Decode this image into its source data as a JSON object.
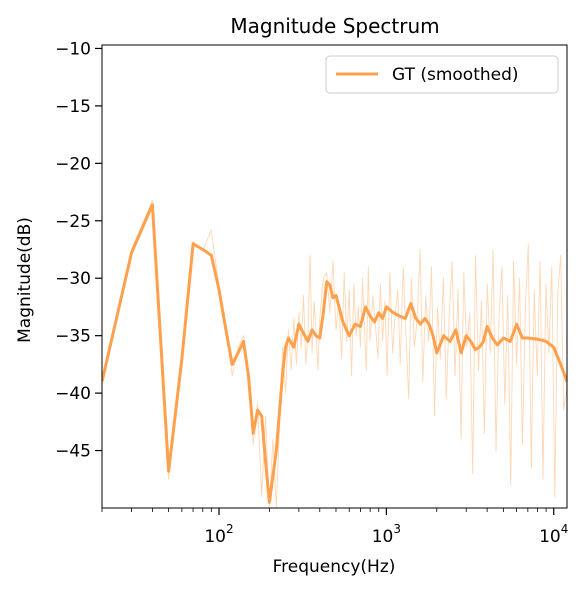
{
  "chart_data": {
    "type": "line",
    "title": "Magnitude Spectrum",
    "xlabel": "Frequency(Hz)",
    "ylabel": "Magnitude(dB)",
    "x_scale": "log",
    "xlim": [
      20,
      12000
    ],
    "ylim": [
      -50,
      -9.7
    ],
    "grid": false,
    "legend_position": "top-right",
    "colors": {
      "smoothed": "#ffa04c",
      "raw": "#ffd3ad"
    },
    "x_ticks": [
      {
        "value": 100,
        "base": "10",
        "exp": "2"
      },
      {
        "value": 1000,
        "base": "10",
        "exp": "3"
      },
      {
        "value": 10000,
        "base": "10",
        "exp": "4"
      }
    ],
    "y_ticks": [
      {
        "value": -10,
        "label": "−10"
      },
      {
        "value": -15,
        "label": "−15"
      },
      {
        "value": -20,
        "label": "−20"
      },
      {
        "value": -25,
        "label": "−25"
      },
      {
        "value": -30,
        "label": "−30"
      },
      {
        "value": -35,
        "label": "−35"
      },
      {
        "value": -40,
        "label": "−40"
      },
      {
        "value": -45,
        "label": "−45"
      }
    ],
    "series": [
      {
        "name": "GT (smoothed)",
        "role": "smoothed",
        "x": [
          20,
          30,
          40,
          50,
          60,
          70,
          80,
          90,
          100,
          110,
          120,
          130,
          140,
          150,
          160,
          170,
          180,
          190,
          200,
          220,
          240,
          250,
          260,
          280,
          300,
          320,
          340,
          360,
          380,
          400,
          420,
          440,
          460,
          480,
          500,
          550,
          600,
          650,
          700,
          750,
          800,
          850,
          900,
          950,
          1000,
          1100,
          1200,
          1300,
          1400,
          1500,
          1600,
          1700,
          1800,
          1900,
          2000,
          2200,
          2400,
          2600,
          2800,
          3000,
          3200,
          3400,
          3600,
          3800,
          4000,
          4300,
          4600,
          5000,
          5500,
          6000,
          6500,
          7000,
          8000,
          9000,
          10000,
          11000,
          12000
        ],
        "y": [
          -39.0,
          -27.8,
          -23.6,
          -46.8,
          -37.0,
          -27.0,
          -27.5,
          -28.0,
          -31.0,
          -34.5,
          -37.5,
          -36.5,
          -35.5,
          -38.5,
          -43.5,
          -41.5,
          -42.0,
          -46.0,
          -49.5,
          -45.0,
          -38.3,
          -36.0,
          -35.2,
          -36.0,
          -34.0,
          -34.8,
          -35.5,
          -34.5,
          -35.0,
          -35.2,
          -33.0,
          -30.3,
          -30.6,
          -31.7,
          -31.5,
          -33.8,
          -35.0,
          -34.0,
          -34.2,
          -32.5,
          -33.3,
          -33.8,
          -33.0,
          -33.5,
          -32.5,
          -33.0,
          -33.3,
          -33.5,
          -32.2,
          -33.5,
          -34.0,
          -33.5,
          -34.0,
          -35.0,
          -36.5,
          -35.0,
          -35.5,
          -34.5,
          -36.5,
          -35.0,
          -35.5,
          -36.2,
          -36.0,
          -35.5,
          -34.2,
          -35.2,
          -35.8,
          -35.2,
          -35.5,
          -34.0,
          -35.2,
          -35.2,
          -35.3,
          -35.5,
          -36.0,
          -37.5,
          -39.0
        ]
      },
      {
        "name": "",
        "role": "raw",
        "x": [
          20,
          30,
          40,
          50,
          60,
          70,
          80,
          90,
          100,
          110,
          120,
          130,
          140,
          150,
          160,
          170,
          180,
          190,
          200,
          210,
          220,
          230,
          240,
          250,
          260,
          270,
          280,
          290,
          300,
          310,
          320,
          330,
          340,
          350,
          360,
          370,
          380,
          390,
          400,
          420,
          440,
          460,
          480,
          500,
          520,
          540,
          560,
          580,
          600,
          620,
          640,
          660,
          680,
          700,
          720,
          740,
          760,
          780,
          800,
          830,
          860,
          890,
          920,
          950,
          980,
          1010,
          1050,
          1090,
          1130,
          1170,
          1210,
          1260,
          1310,
          1360,
          1410,
          1470,
          1530,
          1590,
          1650,
          1720,
          1790,
          1860,
          1940,
          2020,
          2100,
          2190,
          2280,
          2370,
          2470,
          2570,
          2680,
          2790,
          2900,
          3020,
          3150,
          3280,
          3410,
          3550,
          3700,
          3850,
          4010,
          4170,
          4340,
          4520,
          4710,
          4900,
          5100,
          5310,
          5530,
          5760,
          6000,
          6250,
          6500,
          6770,
          7050,
          7340,
          7640,
          7960,
          8290,
          8630,
          8980,
          9350,
          9740,
          10140,
          10560,
          11000,
          11450,
          12000
        ],
        "y": [
          -39.0,
          -27.5,
          -23.2,
          -47.5,
          -36.5,
          -26.8,
          -27.6,
          -25.8,
          -30.8,
          -34.0,
          -38.5,
          -36.0,
          -35.0,
          -38.0,
          -44.5,
          -40.8,
          -49.0,
          -42.0,
          -50.0,
          -44.0,
          -50.0,
          -43.0,
          -36.0,
          -40.0,
          -34.5,
          -38.0,
          -33.5,
          -37.5,
          -33.0,
          -36.0,
          -31.5,
          -37.5,
          -35.0,
          -28.0,
          -36.5,
          -32.0,
          -34.5,
          -38.0,
          -33.5,
          -30.0,
          -29.5,
          -33.0,
          -28.5,
          -34.5,
          -32.0,
          -37.0,
          -29.5,
          -35.5,
          -31.0,
          -38.5,
          -30.5,
          -35.0,
          -32.5,
          -36.0,
          -30.0,
          -34.5,
          -38.0,
          -29.0,
          -35.5,
          -31.5,
          -34.0,
          -37.0,
          -30.5,
          -35.5,
          -32.0,
          -38.5,
          -29.5,
          -36.5,
          -33.0,
          -31.0,
          -37.5,
          -29.0,
          -35.0,
          -40.5,
          -30.0,
          -36.0,
          -33.5,
          -27.5,
          -39.0,
          -31.5,
          -35.5,
          -29.0,
          -42.0,
          -32.5,
          -37.0,
          -30.0,
          -40.5,
          -33.5,
          -28.5,
          -38.5,
          -31.0,
          -44.0,
          -29.5,
          -36.0,
          -33.0,
          -47.0,
          -28.0,
          -38.0,
          -32.0,
          -43.5,
          -30.5,
          -36.5,
          -27.5,
          -45.0,
          -33.5,
          -29.0,
          -41.0,
          -31.5,
          -48.0,
          -28.5,
          -37.5,
          -30.0,
          -44.5,
          -32.5,
          -27.0,
          -46.5,
          -31.0,
          -38.5,
          -28.5,
          -47.5,
          -30.5,
          -36.5,
          -29.0,
          -49.0,
          -31.5,
          -28.0,
          -41.5,
          -39.5
        ]
      }
    ]
  }
}
